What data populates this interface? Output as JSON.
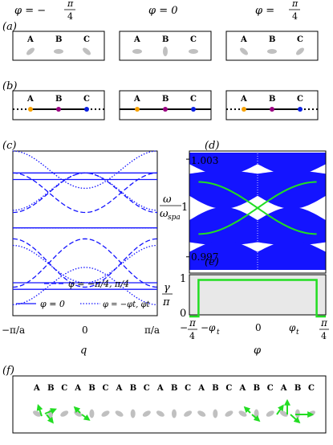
{
  "panels": {
    "a": {
      "label": "(a)"
    },
    "b": {
      "label": "(b)"
    },
    "c": {
      "label": "(c)"
    },
    "d": {
      "label": "(d)"
    },
    "e": {
      "label": "(e)"
    },
    "f": {
      "label": "(f)"
    }
  },
  "column_headers": [
    {
      "phi": "φ = −",
      "num": "π",
      "den": "4"
    },
    {
      "phi": "φ = 0",
      "num": "",
      "den": ""
    },
    {
      "phi": "φ =",
      "num": "π",
      "den": "4"
    }
  ],
  "site_labels": [
    "A",
    "B",
    "C"
  ],
  "chain_f_labels": [
    "A",
    "B",
    "C",
    "A",
    "B",
    "C",
    "A",
    "B",
    "C",
    "A",
    "B",
    "C",
    "A",
    "B",
    "C",
    "A",
    "B",
    "C",
    "A",
    "B",
    "C"
  ],
  "colors": {
    "blue": "#1414ff",
    "green": "#22dd22",
    "gray": "#c0c0c0",
    "orange": "#f5a000",
    "purple": "#9a0080",
    "site_blue": "#0a1fe0",
    "shade": "#e8e8e8"
  },
  "chart_data": [
    {
      "type": "line",
      "panel": "c",
      "xlabel": "q",
      "x_ticks": [
        "−π/a",
        "0",
        "π/a"
      ],
      "xlim": [
        -3.1416,
        3.1416
      ],
      "ylim": [
        0.996,
        1.0035
      ],
      "legend": [
        {
          "style": "dashed",
          "label": "φ = −π/4, π/4"
        },
        {
          "style": "solid",
          "label": "φ = 0"
        },
        {
          "style": "dotted",
          "label": "φ = −φt, φt"
        }
      ],
      "series": [
        {
          "style": "solid",
          "values_desc": "flat",
          "levels": [
            1.0025,
            1.0022,
            1.0,
            0.9975,
            0.9972
          ]
        },
        {
          "style": "dashed",
          "levels_at_edge": [
            1.0025,
            1.0013,
            1.0,
            0.9987,
            0.9973
          ]
        },
        {
          "style": "dotted",
          "levels_at_edge": [
            1.0035,
            1.0025,
            1.0,
            0.9975,
            0.9965
          ]
        }
      ]
    },
    {
      "type": "area",
      "panel": "d",
      "ylabel": "ω/ωspa",
      "y_ticks": [
        "1.003",
        "1",
        "0.997"
      ],
      "ylim": [
        0.996,
        1.0035
      ],
      "xlim": [
        -0.785,
        0.785
      ]
    },
    {
      "type": "line",
      "panel": "e",
      "ylabel": "γ/π",
      "y_ticks": [
        "1",
        "0"
      ],
      "xlabel": "φ",
      "x_ticks": [
        "−π/4",
        "−φt",
        "0",
        "φt",
        "π/4"
      ],
      "x": [
        -0.785,
        -0.68,
        -0.68,
        0.68,
        0.68,
        0.785
      ],
      "values": [
        0,
        0,
        1,
        1,
        0,
        0
      ],
      "ylim": [
        0,
        1.1
      ]
    }
  ]
}
